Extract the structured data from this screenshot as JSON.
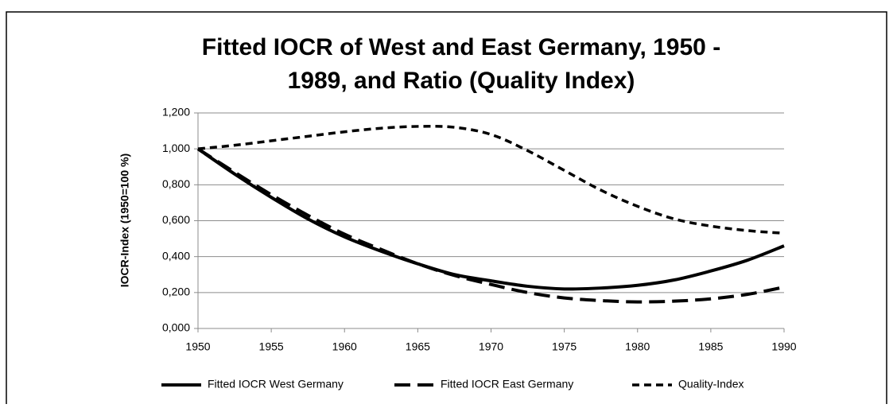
{
  "chart_data": {
    "type": "line",
    "title": "Fitted IOCR of West and East Germany, 1950 -",
    "subtitle": "1989, and Ratio (Quality Index)",
    "y_label": "IOCR-Index (1950=100 %)",
    "x": [
      1950,
      1952.5,
      1955,
      1957.5,
      1960,
      1962.5,
      1965,
      1967.5,
      1970,
      1972.5,
      1975,
      1977.5,
      1980,
      1982.5,
      1985,
      1987.5,
      1990
    ],
    "series": [
      {
        "name": "Fitted IOCR West Germany",
        "color": "#000000",
        "dash": "solid",
        "values": [
          1.0,
          0.86,
          0.73,
          0.61,
          0.51,
          0.43,
          0.36,
          0.3,
          0.265,
          0.235,
          0.22,
          0.225,
          0.24,
          0.27,
          0.32,
          0.38,
          0.46
        ]
      },
      {
        "name": "Fitted IOCR East Germany",
        "color": "#000000",
        "dash": "long",
        "values": [
          1.0,
          0.87,
          0.745,
          0.63,
          0.525,
          0.44,
          0.36,
          0.295,
          0.245,
          0.2,
          0.17,
          0.155,
          0.148,
          0.152,
          0.165,
          0.19,
          0.23
        ]
      },
      {
        "name": "Quality-Index",
        "color": "#000000",
        "dash": "short",
        "values": [
          1.0,
          1.02,
          1.045,
          1.07,
          1.095,
          1.115,
          1.125,
          1.12,
          1.08,
          0.99,
          0.88,
          0.77,
          0.68,
          0.61,
          0.57,
          0.545,
          0.53
        ]
      }
    ],
    "xlim": [
      1950,
      1990
    ],
    "xticks": [
      1950,
      1955,
      1960,
      1965,
      1970,
      1975,
      1980,
      1985,
      1990
    ],
    "ylim": [
      0,
      1.2
    ],
    "yticks": [
      {
        "value": 0,
        "label": "0,000"
      },
      {
        "value": 0.2,
        "label": "0,200"
      },
      {
        "value": 0.4,
        "label": "0,400"
      },
      {
        "value": 0.6,
        "label": "0,600"
      },
      {
        "value": 0.8,
        "label": "0,800"
      },
      {
        "value": 1.0,
        "label": "1,000"
      },
      {
        "value": 1.2,
        "label": "1,200"
      }
    ],
    "grid": true,
    "legend": "bottom"
  }
}
